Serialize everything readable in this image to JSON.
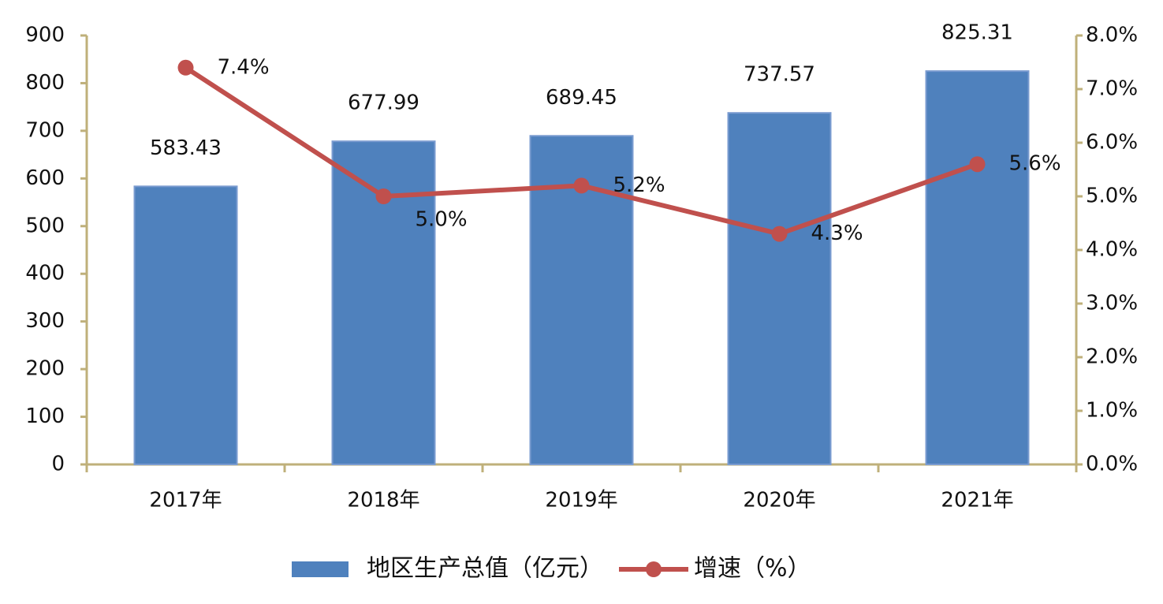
{
  "chart_data": {
    "type": "bar",
    "categories": [
      "2017年",
      "2018年",
      "2019年",
      "2020年",
      "2021年"
    ],
    "series": [
      {
        "name": "地区生产总值（亿元）",
        "color": "#4f81bd",
        "type": "bar",
        "values": [
          583.43,
          677.99,
          689.45,
          737.57,
          825.31
        ]
      },
      {
        "name": "增速（%）",
        "color": "#c0504d",
        "type": "line",
        "axis": "y2",
        "values": [
          7.4,
          5.0,
          5.2,
          4.3,
          5.6
        ],
        "value_labels": [
          "7.4%",
          "5.0%",
          "5.2%",
          "4.3%",
          "5.6%"
        ]
      }
    ],
    "ylim": [
      0,
      900
    ],
    "yticks": [
      0,
      100,
      200,
      300,
      400,
      500,
      600,
      700,
      800,
      900
    ],
    "y2lim": [
      0,
      8
    ],
    "y2ticks": [
      {
        "value": 0,
        "label": "0.0%"
      },
      {
        "value": 1,
        "label": "1.0%"
      },
      {
        "value": 2,
        "label": "2.0%"
      },
      {
        "value": 3,
        "label": "3.0%"
      },
      {
        "value": 4,
        "label": "4.0%"
      },
      {
        "value": 5,
        "label": "5.0%"
      },
      {
        "value": 6,
        "label": "6.0%"
      },
      {
        "value": 7,
        "label": "7.0%"
      },
      {
        "value": 8,
        "label": "8.0%"
      }
    ],
    "grid": false,
    "legend": "bottom"
  }
}
